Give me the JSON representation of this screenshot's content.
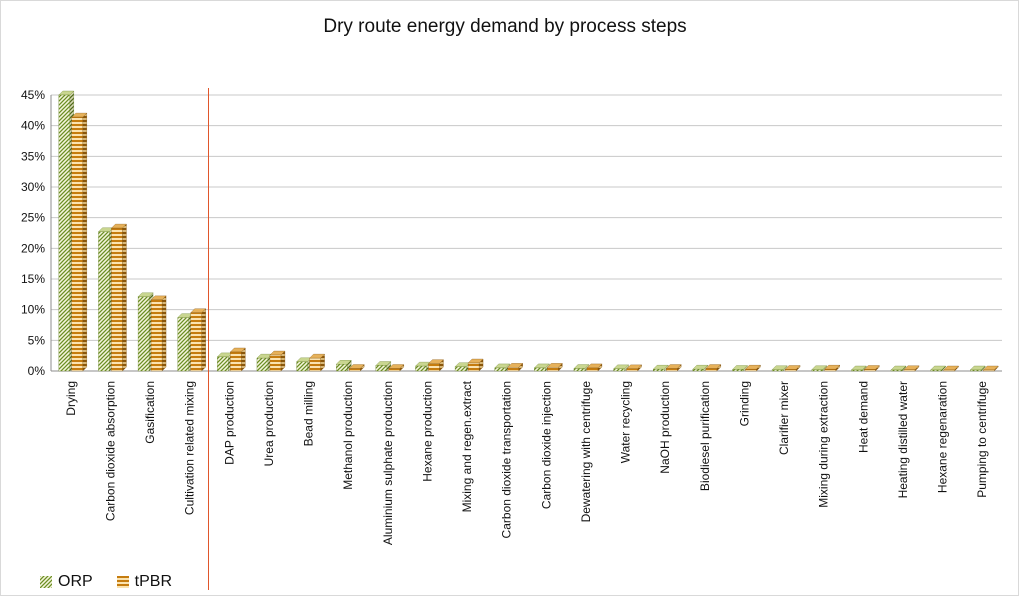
{
  "chart_data": {
    "type": "bar",
    "title": "Dry route energy demand by process steps",
    "xlabel": "",
    "ylabel": "",
    "ylim": [
      0,
      45
    ],
    "y_ticks": [
      "0%",
      "5%",
      "10%",
      "15%",
      "20%",
      "25%",
      "30%",
      "35%",
      "40%",
      "45%"
    ],
    "grid": true,
    "legend_position": "bottom-left",
    "categories": [
      "Drying",
      "Carbon dioxide absorption",
      "Gasification",
      "Cultivation related mixing",
      "DAP production",
      "Urea production",
      "Bead milling",
      "Methanol production",
      "Aluminium sulphate production",
      "Hexane production",
      "Mixing and regen.extract",
      "Carbon dioxide transportation",
      "Carbon dioxide injection",
      "Dewatering with centrifuge",
      "Water recycling",
      "NaOH production",
      "Biodiesel purification",
      "Grinding",
      "Clarifier mixer",
      "Mixing during extraction",
      "Heat demand",
      "Heating distilled water",
      "Hexane regenaration",
      "Pumping to centrifuge"
    ],
    "series": [
      {
        "name": "ORP",
        "color": "#8fb040",
        "values": [
          45.0,
          22.7,
          12.1,
          8.7,
          2.3,
          2.1,
          1.5,
          1.1,
          0.9,
          0.8,
          0.7,
          0.5,
          0.5,
          0.4,
          0.35,
          0.3,
          0.3,
          0.25,
          0.2,
          0.2,
          0.15,
          0.15,
          0.1,
          0.1
        ]
      },
      {
        "name": "tPBR",
        "color": "#c57c0f",
        "values": [
          41.4,
          23.3,
          11.6,
          9.5,
          3.1,
          2.6,
          2.1,
          0.4,
          0.4,
          1.2,
          1.3,
          0.6,
          0.6,
          0.5,
          0.35,
          0.4,
          0.4,
          0.3,
          0.25,
          0.3,
          0.25,
          0.2,
          0.15,
          0.15
        ]
      }
    ],
    "separator_after_index": 3,
    "separator_color": "#e0562b"
  }
}
